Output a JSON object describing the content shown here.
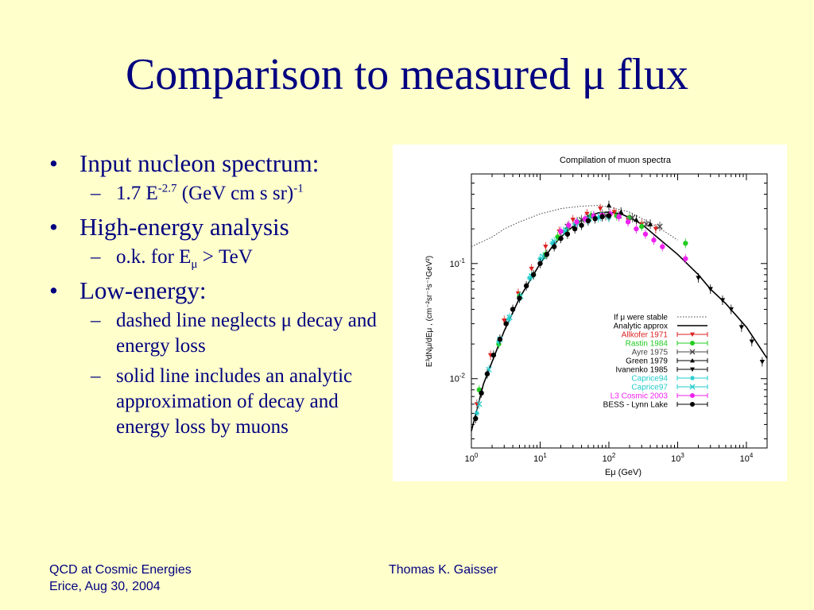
{
  "slide": {
    "title": "Comparison to measured μ flux",
    "bullets": [
      {
        "text": "Input nucleon spectrum:",
        "sub": [
          {
            "pre": " 1.7 E",
            "sup1": "-2.7",
            "mid": " (GeV cm s sr)",
            "sup2": "-1"
          }
        ]
      },
      {
        "text": "High-energy analysis",
        "sub": [
          {
            "pre": " o.k. for E",
            "subscript": "μ",
            "post": " > TeV"
          }
        ]
      },
      {
        "text": "Low-energy:",
        "sub": [
          {
            "text": " dashed line neglects μ decay and energy loss"
          },
          {
            "text": " solid line includes an analytic approximation of decay and energy loss by muons"
          }
        ]
      }
    ]
  },
  "footer": {
    "left_line1": "QCD at Cosmic Energies",
    "left_line2": "Erice, Aug 30, 2004",
    "center": "Thomas K. Gaisser"
  },
  "chart_data": {
    "type": "scatter",
    "title": "Compilation of muon spectra",
    "xlabel": "Eμ (GeV)",
    "ylabel": "E³dNμ/dEμ , (cm⁻²sr⁻¹s⁻¹GeV²)",
    "x_scale": "log",
    "y_scale": "log",
    "xlim": [
      1,
      20000
    ],
    "ylim": [
      0.0025,
      0.6
    ],
    "x_ticks": [
      {
        "v": 1,
        "b": "10",
        "e": "0"
      },
      {
        "v": 10,
        "b": "10",
        "e": "1"
      },
      {
        "v": 100,
        "b": "10",
        "e": "2"
      },
      {
        "v": 1000,
        "b": "10",
        "e": "3"
      },
      {
        "v": 10000,
        "b": "10",
        "e": "4"
      }
    ],
    "y_ticks": [
      {
        "v": 0.01,
        "b": "10",
        "e": "-2"
      },
      {
        "v": 0.1,
        "b": "10",
        "e": "-1"
      }
    ],
    "lines": [
      {
        "name": "If μ were stable",
        "style": "dotted",
        "color": "#444444",
        "points": [
          [
            1,
            0.14
          ],
          [
            2,
            0.17
          ],
          [
            3,
            0.2
          ],
          [
            5,
            0.23
          ],
          [
            10,
            0.27
          ],
          [
            20,
            0.3
          ],
          [
            40,
            0.315
          ],
          [
            70,
            0.32
          ],
          [
            100,
            0.31
          ],
          [
            200,
            0.28
          ],
          [
            500,
            0.21
          ],
          [
            1000,
            0.16
          ]
        ]
      },
      {
        "name": "Analytic approx",
        "style": "solid",
        "color": "#000000",
        "points": [
          [
            1,
            0.0035
          ],
          [
            1.5,
            0.009
          ],
          [
            2,
            0.014
          ],
          [
            3,
            0.026
          ],
          [
            5,
            0.05
          ],
          [
            7,
            0.07
          ],
          [
            10,
            0.1
          ],
          [
            15,
            0.14
          ],
          [
            20,
            0.17
          ],
          [
            30,
            0.21
          ],
          [
            50,
            0.26
          ],
          [
            70,
            0.275
          ],
          [
            100,
            0.28
          ],
          [
            150,
            0.27
          ],
          [
            200,
            0.25
          ],
          [
            300,
            0.22
          ],
          [
            500,
            0.17
          ],
          [
            1000,
            0.12
          ],
          [
            2000,
            0.08
          ],
          [
            3000,
            0.06
          ],
          [
            5000,
            0.045
          ],
          [
            10000,
            0.028
          ],
          [
            20000,
            0.015
          ]
        ]
      }
    ],
    "series": [
      {
        "name": "Allkofer 1971",
        "color": "#dd2222",
        "marker": "triangle-down",
        "points": [
          [
            1.2,
            0.006
          ],
          [
            1.9,
            0.016
          ],
          [
            3,
            0.032
          ],
          [
            4.8,
            0.055
          ],
          [
            7.5,
            0.09
          ],
          [
            12,
            0.14
          ],
          [
            19,
            0.19
          ],
          [
            30,
            0.24
          ],
          [
            48,
            0.27
          ],
          [
            75,
            0.3
          ],
          [
            120,
            0.28
          ],
          [
            190,
            0.24
          ],
          [
            300,
            0.22
          ],
          [
            480,
            0.2
          ]
        ]
      },
      {
        "name": "Rastin 1984",
        "color": "#22cc22",
        "marker": "circle",
        "points": [
          [
            1.3,
            0.008
          ],
          [
            2.5,
            0.02
          ],
          [
            5,
            0.052
          ],
          [
            8,
            0.08
          ],
          [
            12,
            0.12
          ],
          [
            18,
            0.17
          ],
          [
            25,
            0.2
          ],
          [
            35,
            0.23
          ],
          [
            55,
            0.26
          ],
          [
            80,
            0.27
          ],
          [
            130,
            0.26
          ],
          [
            200,
            0.25
          ],
          [
            300,
            0.21
          ],
          [
            1300,
            0.15
          ]
        ]
      },
      {
        "name": "Ayre 1975",
        "color": "#444444",
        "marker": "x",
        "points": [
          [
            25,
            0.21
          ],
          [
            40,
            0.24
          ],
          [
            60,
            0.26
          ],
          [
            90,
            0.26
          ],
          [
            140,
            0.26
          ],
          [
            220,
            0.25
          ],
          [
            350,
            0.22
          ],
          [
            550,
            0.21
          ]
        ]
      },
      {
        "name": "Green 1979",
        "color": "#000000",
        "marker": "triangle",
        "points": [
          [
            100,
            0.32
          ],
          [
            150,
            0.28
          ],
          [
            250,
            0.24
          ],
          [
            400,
            0.22
          ]
        ]
      },
      {
        "name": "Ivanenko 1985",
        "color": "#000000",
        "marker": "triangle-down",
        "points": [
          [
            2000,
            0.075
          ],
          [
            3000,
            0.06
          ],
          [
            4500,
            0.048
          ],
          [
            6000,
            0.04
          ],
          [
            8500,
            0.028
          ],
          [
            12000,
            0.021
          ],
          [
            17000,
            0.014
          ]
        ]
      },
      {
        "name": "Caprice94",
        "color": "#22cccc",
        "marker": "star",
        "points": [
          [
            1.2,
            0.005
          ],
          [
            1.7,
            0.011
          ],
          [
            2.5,
            0.021
          ],
          [
            3.5,
            0.033
          ],
          [
            5,
            0.05
          ],
          [
            7,
            0.075
          ],
          [
            10,
            0.11
          ],
          [
            15,
            0.15
          ],
          [
            22,
            0.19
          ],
          [
            32,
            0.22
          ],
          [
            48,
            0.24
          ],
          [
            70,
            0.25
          ],
          [
            100,
            0.25
          ]
        ]
      },
      {
        "name": "Caprice97",
        "color": "#22cccc",
        "marker": "x",
        "points": [
          [
            1.3,
            0.006
          ],
          [
            1.8,
            0.012
          ],
          [
            2.6,
            0.022
          ],
          [
            3.6,
            0.034
          ],
          [
            5.2,
            0.052
          ],
          [
            7.5,
            0.078
          ],
          [
            11,
            0.115
          ],
          [
            16,
            0.155
          ],
          [
            24,
            0.195
          ],
          [
            35,
            0.225
          ],
          [
            52,
            0.245
          ],
          [
            75,
            0.255
          ]
        ]
      },
      {
        "name": "L3 Cosmic 2003",
        "color": "#ee22ee",
        "marker": "circle",
        "points": [
          [
            20,
            0.19
          ],
          [
            26,
            0.215
          ],
          [
            34,
            0.23
          ],
          [
            45,
            0.245
          ],
          [
            60,
            0.26
          ],
          [
            80,
            0.265
          ],
          [
            105,
            0.27
          ],
          [
            140,
            0.255
          ],
          [
            190,
            0.23
          ],
          [
            250,
            0.2
          ],
          [
            340,
            0.18
          ],
          [
            450,
            0.16
          ],
          [
            600,
            0.14
          ],
          [
            1300,
            0.11
          ]
        ]
      },
      {
        "name": "BESS - Lynn Lake",
        "color": "#000000",
        "marker": "circle",
        "points": [
          [
            1.15,
            0.0045
          ],
          [
            1.4,
            0.0075
          ],
          [
            1.7,
            0.011
          ],
          [
            2.1,
            0.016
          ],
          [
            2.6,
            0.022
          ],
          [
            3.2,
            0.03
          ],
          [
            4,
            0.04
          ],
          [
            5,
            0.05
          ],
          [
            6.3,
            0.064
          ],
          [
            8,
            0.08
          ],
          [
            10,
            0.1
          ],
          [
            12.5,
            0.12
          ],
          [
            16,
            0.14
          ],
          [
            20,
            0.165
          ],
          [
            25,
            0.18
          ],
          [
            32,
            0.2
          ],
          [
            40,
            0.215
          ],
          [
            50,
            0.235
          ],
          [
            63,
            0.245
          ],
          [
            80,
            0.255
          ],
          [
            100,
            0.26
          ]
        ]
      }
    ],
    "legend_position": "bottom-right",
    "grid": false
  }
}
